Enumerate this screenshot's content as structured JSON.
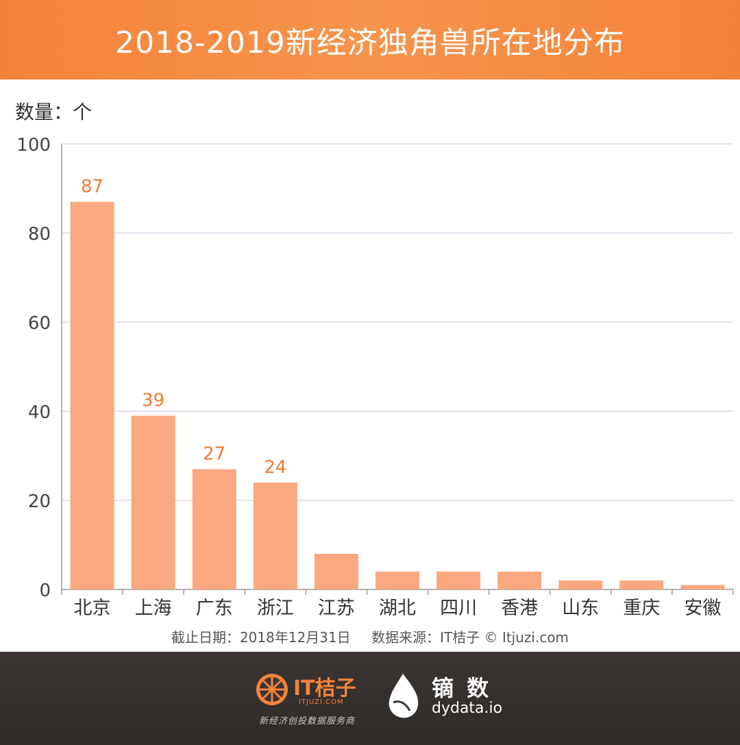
{
  "header": {
    "title": "2018-2019新经济独角兽所在地分布"
  },
  "unit_label": "数量：个",
  "chart_data": {
    "type": "bar",
    "title": "2018-2019新经济独角兽所在地分布",
    "ylabel": "数量：个",
    "xlabel": "",
    "ylim": [
      0,
      100
    ],
    "yticks": [
      0,
      20,
      40,
      60,
      80,
      100
    ],
    "grid": true,
    "categories": [
      "北京",
      "上海",
      "广东",
      "浙江",
      "江苏",
      "湖北",
      "四川",
      "香港",
      "山东",
      "重庆",
      "安徽"
    ],
    "values": [
      87,
      39,
      27,
      24,
      8,
      4,
      4,
      4,
      2,
      2,
      1
    ],
    "data_labels": [
      "87",
      "39",
      "27",
      "24",
      "",
      "",
      "",
      "",
      "",
      "",
      ""
    ],
    "bar_color": "#f9a87f",
    "label_color": "#f07b2e"
  },
  "footnote": {
    "date": "截止日期：2018年12月31日",
    "source": "数据来源：IT桔子 © Itjuzi.com"
  },
  "footer": {
    "it_brand": "IT桔子",
    "it_domain": "ITJUZI.COM",
    "it_slogan": "新经济创投数据服务商",
    "dy_brand": "镝 数",
    "dy_domain": "dydata.io"
  }
}
